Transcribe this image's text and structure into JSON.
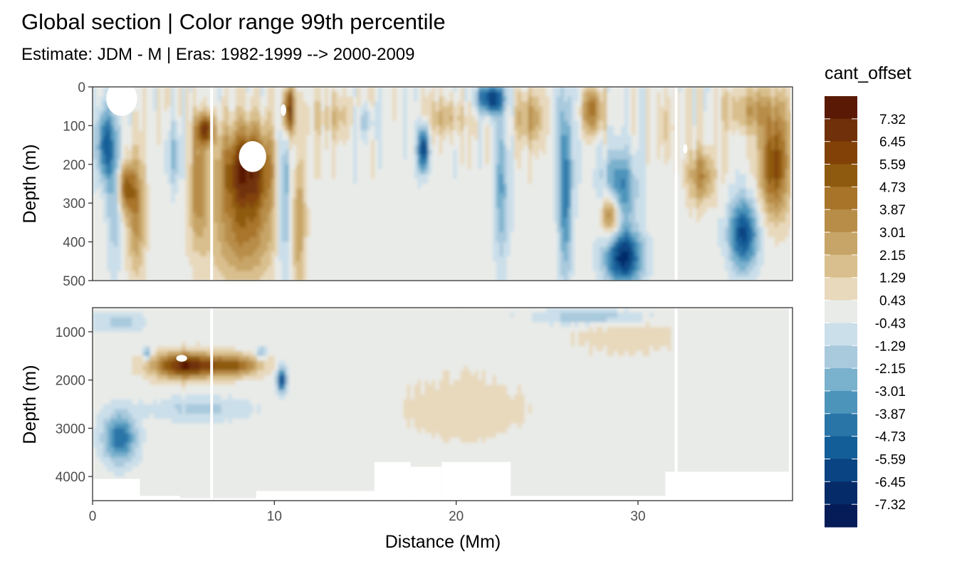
{
  "chart_data": {
    "type": "heatmap",
    "title": "Global section | Color range 99th percentile",
    "subtitle": "Estimate: JDM - M | Eras: 1982-1999 --> 2000-2009",
    "xlabel": "Distance (Mm)",
    "x_ticks": [
      0,
      10,
      20,
      30
    ],
    "xlim": [
      0,
      38.5
    ],
    "panels": [
      {
        "name": "upper",
        "ylabel": "Depth (m)",
        "y_ticks": [
          0,
          100,
          200,
          300,
          400,
          500
        ],
        "ylim": [
          0,
          500
        ],
        "y_reversed": true,
        "blobs": [
          {
            "x": 0.7,
            "y": 150,
            "rx": 0.5,
            "ry": 90,
            "v": -4.5
          },
          {
            "x": 1.2,
            "y": 250,
            "rx": 0.4,
            "ry": 200,
            "v": -2.5
          },
          {
            "x": 1.8,
            "y": 260,
            "rx": 0.45,
            "ry": 60,
            "v": 4.5
          },
          {
            "x": 2.4,
            "y": 320,
            "rx": 0.5,
            "ry": 160,
            "v": 3.5
          },
          {
            "x": 4.5,
            "y": 180,
            "rx": 0.6,
            "ry": 80,
            "v": -2.0
          },
          {
            "x": 5.8,
            "y": 250,
            "rx": 0.5,
            "ry": 150,
            "v": 3.5
          },
          {
            "x": 6.2,
            "y": 110,
            "rx": 0.5,
            "ry": 40,
            "v": 5.5
          },
          {
            "x": 8.5,
            "y": 210,
            "rx": 1.5,
            "ry": 110,
            "v": 6.5
          },
          {
            "x": 8.3,
            "y": 380,
            "rx": 1.8,
            "ry": 130,
            "v": 3.5
          },
          {
            "x": 10.8,
            "y": 60,
            "rx": 0.35,
            "ry": 70,
            "v": 7.0
          },
          {
            "x": 10.6,
            "y": 260,
            "rx": 0.5,
            "ry": 240,
            "v": -3.0
          },
          {
            "x": 11.3,
            "y": 350,
            "rx": 0.4,
            "ry": 180,
            "v": 3.0
          },
          {
            "x": 13.5,
            "y": 80,
            "rx": 1.5,
            "ry": 60,
            "v": 1.5
          },
          {
            "x": 15.0,
            "y": 90,
            "rx": 0.7,
            "ry": 40,
            "v": -2.0
          },
          {
            "x": 18.2,
            "y": 160,
            "rx": 0.3,
            "ry": 60,
            "v": -6.5
          },
          {
            "x": 19.5,
            "y": 80,
            "rx": 1.2,
            "ry": 50,
            "v": 2.0
          },
          {
            "x": 21.9,
            "y": 30,
            "rx": 0.8,
            "ry": 40,
            "v": -6.0
          },
          {
            "x": 22.5,
            "y": 250,
            "rx": 0.4,
            "ry": 200,
            "v": -3.0
          },
          {
            "x": 24.0,
            "y": 80,
            "rx": 0.8,
            "ry": 70,
            "v": 2.5
          },
          {
            "x": 26.0,
            "y": 250,
            "rx": 0.35,
            "ry": 230,
            "v": -4.5
          },
          {
            "x": 27.5,
            "y": 60,
            "rx": 0.6,
            "ry": 60,
            "v": 4.5
          },
          {
            "x": 29.0,
            "y": 260,
            "rx": 0.9,
            "ry": 90,
            "v": -4.0
          },
          {
            "x": 28.5,
            "y": 330,
            "rx": 0.5,
            "ry": 60,
            "v": 5.0
          },
          {
            "x": 29.2,
            "y": 440,
            "rx": 1.0,
            "ry": 70,
            "v": -6.5
          },
          {
            "x": 31.5,
            "y": 100,
            "rx": 0.6,
            "ry": 90,
            "v": 1.5
          },
          {
            "x": 33.5,
            "y": 230,
            "rx": 0.7,
            "ry": 70,
            "v": 3.5
          },
          {
            "x": 35.8,
            "y": 380,
            "rx": 0.8,
            "ry": 90,
            "v": -5.5
          },
          {
            "x": 37.5,
            "y": 200,
            "rx": 0.8,
            "ry": 130,
            "v": 5.5
          },
          {
            "x": 36.2,
            "y": 60,
            "rx": 1.5,
            "ry": 60,
            "v": 2.5
          }
        ],
        "holes": [
          {
            "x": 8.8,
            "y": 180,
            "rx": 0.75,
            "ry": 40
          },
          {
            "x": 1.6,
            "y": 30,
            "rx": 0.85,
            "ry": 45
          },
          {
            "x": 10.5,
            "y": 60,
            "rx": 0.15,
            "ry": 15
          },
          {
            "x": 32.6,
            "y": 160,
            "rx": 0.12,
            "ry": 12
          }
        ]
      },
      {
        "name": "lower",
        "ylabel": "Depth (m)",
        "y_ticks": [
          1000,
          2000,
          3000,
          4000
        ],
        "ylim": [
          500,
          4500
        ],
        "y_reversed": true,
        "blobs": [
          {
            "x": 5.1,
            "y": 1700,
            "rx": 1.7,
            "ry": 260,
            "v": 7.0
          },
          {
            "x": 7.8,
            "y": 1700,
            "rx": 1.5,
            "ry": 220,
            "v": 4.5
          },
          {
            "x": 1.5,
            "y": 3200,
            "rx": 0.9,
            "ry": 500,
            "v": -4.5
          },
          {
            "x": 6.0,
            "y": 2600,
            "rx": 2.8,
            "ry": 250,
            "v": -1.5
          },
          {
            "x": 10.4,
            "y": 2000,
            "rx": 0.25,
            "ry": 250,
            "v": -6.0
          },
          {
            "x": 1.5,
            "y": 800,
            "rx": 1.5,
            "ry": 200,
            "v": -1.5
          },
          {
            "x": 27.5,
            "y": 700,
            "rx": 3.0,
            "ry": 150,
            "v": -2.0
          },
          {
            "x": 20.5,
            "y": 2600,
            "rx": 3.5,
            "ry": 700,
            "v": 1.0
          },
          {
            "x": 29.0,
            "y": 1100,
            "rx": 3.0,
            "ry": 400,
            "v": 0.9
          },
          {
            "x": 3.0,
            "y": 1450,
            "rx": 0.2,
            "ry": 120,
            "v": -3.5
          },
          {
            "x": 9.3,
            "y": 1450,
            "rx": 0.3,
            "ry": 150,
            "v": -2.5
          }
        ],
        "holes": [
          {
            "x": 4.9,
            "y": 1550,
            "rx": 0.3,
            "ry": 70
          }
        ]
      }
    ],
    "legend": {
      "title": "cant_offset",
      "position": "right",
      "labels": [
        "7.32",
        "6.45",
        "5.59",
        "4.73",
        "3.87",
        "3.01",
        "2.15",
        "1.29",
        "0.43",
        "-0.43",
        "-1.29",
        "-2.15",
        "-3.01",
        "-3.87",
        "-4.73",
        "-5.59",
        "-6.45",
        "-7.32"
      ],
      "colors": [
        "#5a1904",
        "#70300a",
        "#824207",
        "#8e5a10",
        "#a8742a",
        "#b88d48",
        "#c7a568",
        "#d9bf8d",
        "#e8d9bd",
        "#e9ebe8",
        "#cbdfea",
        "#a9c9dd",
        "#7ab1cd",
        "#4d94bb",
        "#2a75a7",
        "#135e98",
        "#0a4482",
        "#062b69",
        "#061c58"
      ]
    },
    "grid": true
  }
}
